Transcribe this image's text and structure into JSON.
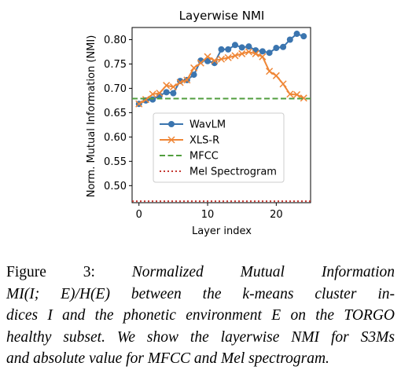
{
  "chart_data": {
    "type": "line",
    "title": "Layerwise NMI",
    "xlabel": "Layer index",
    "ylabel": "Norm. Mutual Information (NMI)",
    "xlim": [
      -1,
      25
    ],
    "ylim": [
      0.465,
      0.825
    ],
    "xticks": [
      0,
      10,
      20
    ],
    "xtick_labels": [
      "0",
      "10",
      "20"
    ],
    "yticks": [
      0.5,
      0.55,
      0.6,
      0.65,
      0.7,
      0.75,
      0.8
    ],
    "ytick_labels": [
      "0.50",
      "0.55",
      "0.60",
      "0.65",
      "0.70",
      "0.75",
      "0.80"
    ],
    "legend_position": "center-right",
    "grid": false,
    "series": [
      {
        "name": "WavLM",
        "style": "line-circle",
        "color": "#3b75af",
        "x": [
          0,
          1,
          2,
          3,
          4,
          5,
          6,
          7,
          8,
          9,
          10,
          11,
          12,
          13,
          14,
          15,
          16,
          17,
          18,
          19,
          20,
          21,
          22,
          23,
          24
        ],
        "y": [
          0.668,
          0.675,
          0.677,
          0.685,
          0.692,
          0.69,
          0.715,
          0.717,
          0.728,
          0.757,
          0.756,
          0.752,
          0.78,
          0.78,
          0.789,
          0.784,
          0.786,
          0.778,
          0.776,
          0.773,
          0.783,
          0.785,
          0.8,
          0.812,
          0.807
        ]
      },
      {
        "name": "XLS-R",
        "style": "line-x",
        "color": "#ef8636",
        "x": [
          0,
          1,
          2,
          3,
          4,
          5,
          6,
          7,
          8,
          9,
          10,
          11,
          12,
          13,
          14,
          15,
          16,
          17,
          18,
          19,
          20,
          21,
          22,
          23,
          24
        ],
        "y": [
          0.668,
          0.677,
          0.688,
          0.69,
          0.706,
          0.703,
          0.712,
          0.717,
          0.742,
          0.752,
          0.765,
          0.757,
          0.76,
          0.763,
          0.767,
          0.771,
          0.775,
          0.771,
          0.765,
          0.735,
          0.726,
          0.709,
          0.688,
          0.687,
          0.68
        ]
      },
      {
        "name": "MFCC",
        "style": "dashed",
        "color": "#519e3e",
        "y_const": 0.679
      },
      {
        "name": "Mel Spectrogram",
        "style": "dotted",
        "color": "#c53932",
        "y_const": 0.468
      }
    ]
  },
  "caption": {
    "lines": [
      [
        {
          "t": "Figure 3:",
          "i": false
        },
        {
          "t": "Normalized Mutual Information",
          "i": true
        }
      ],
      [
        {
          "t": "MI(I; E)/H(E) between the k-means cluster in-",
          "i": true
        }
      ],
      [
        {
          "t": "dices I and the phonetic environment E on the TORGO",
          "i": true
        }
      ],
      [
        {
          "t": "healthy subset. We show the layerwise NMI for S3Ms",
          "i": true
        }
      ],
      [
        {
          "t": "and absolute value for MFCC and Mel spectrogram.",
          "i": true
        }
      ]
    ]
  }
}
